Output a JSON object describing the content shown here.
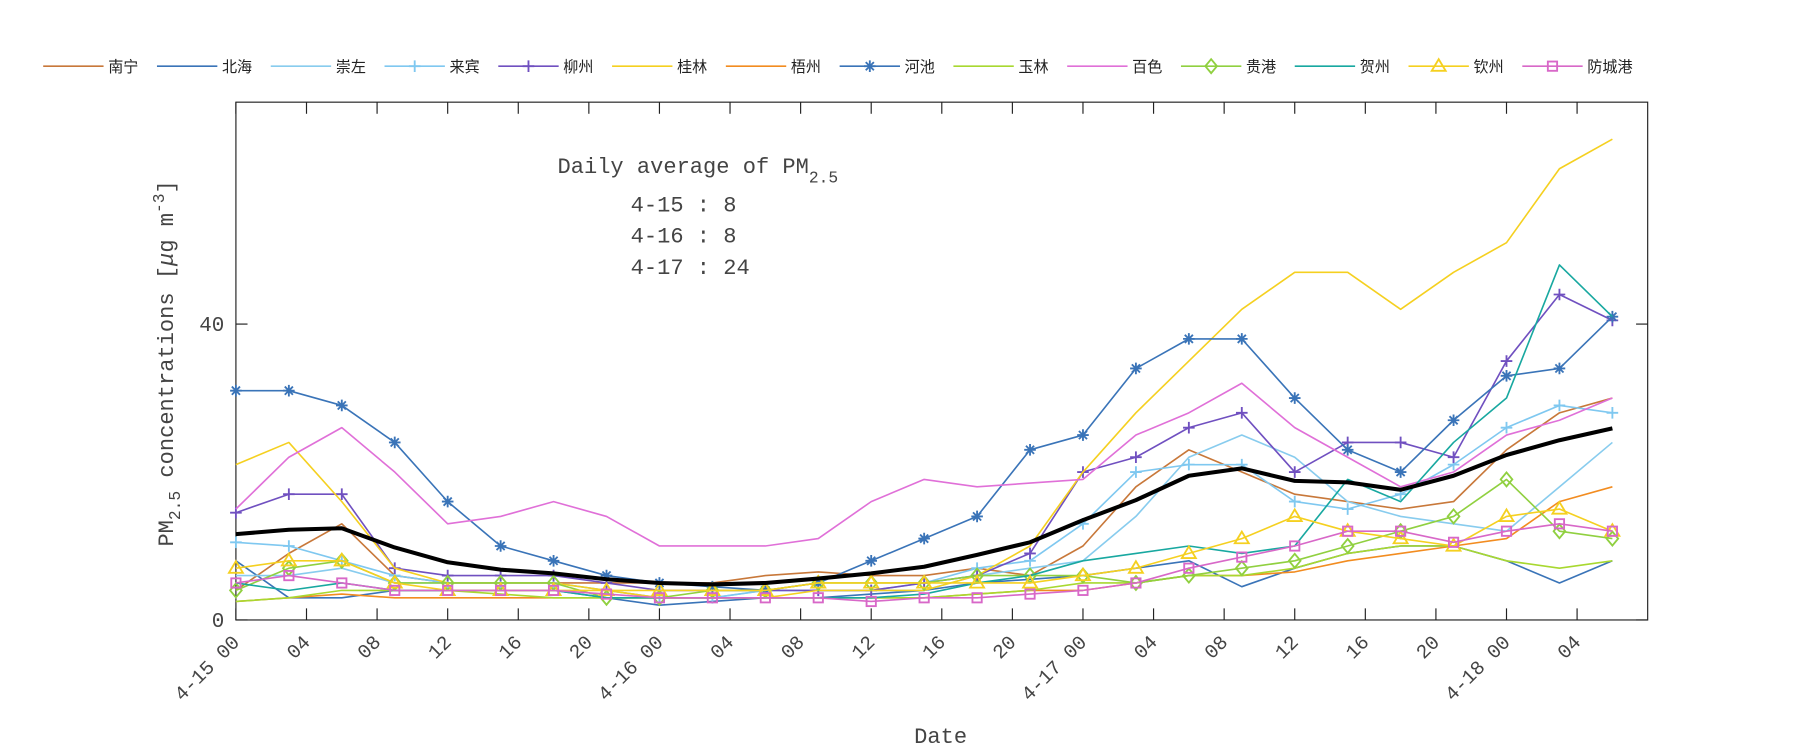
{
  "chart_data": {
    "type": "line",
    "annotation": {
      "title": "Daily average of PM",
      "title_sub": "2.5",
      "lines": [
        "4-15 : 8",
        "4-16 : 8",
        "4-17 : 24"
      ]
    },
    "xlabel": "Date",
    "ylabel": {
      "main": "PM",
      "sub": "2.5",
      "rest": " concentrations [",
      "mu": "μ",
      "unit": "g m",
      "sup": "-3",
      "end": "]"
    },
    "x": [
      0,
      3,
      6,
      9,
      12,
      15,
      18,
      21,
      24,
      27,
      30,
      33,
      36,
      39,
      42,
      45,
      48,
      51,
      54,
      57,
      60,
      63,
      66,
      69,
      72,
      75,
      78
    ],
    "xlim": [
      0,
      80
    ],
    "xticks": [
      {
        "value": 0,
        "label": "4-15 00"
      },
      {
        "value": 4,
        "label": "04"
      },
      {
        "value": 8,
        "label": "08"
      },
      {
        "value": 12,
        "label": "12"
      },
      {
        "value": 16,
        "label": "16"
      },
      {
        "value": 20,
        "label": "20"
      },
      {
        "value": 24,
        "label": "4-16 00"
      },
      {
        "value": 28,
        "label": "04"
      },
      {
        "value": 32,
        "label": "08"
      },
      {
        "value": 36,
        "label": "12"
      },
      {
        "value": 40,
        "label": "16"
      },
      {
        "value": 44,
        "label": "20"
      },
      {
        "value": 48,
        "label": "4-17 00"
      },
      {
        "value": 52,
        "label": "04"
      },
      {
        "value": 56,
        "label": "08"
      },
      {
        "value": 60,
        "label": "12"
      },
      {
        "value": 64,
        "label": "16"
      },
      {
        "value": 68,
        "label": "20"
      },
      {
        "value": 72,
        "label": "4-18 00"
      },
      {
        "value": 76,
        "label": "04"
      }
    ],
    "ylim": [
      0,
      70
    ],
    "yticks": [
      0,
      40
    ],
    "series": [
      {
        "name": "南宁",
        "color": "#c8783a",
        "marker": "none",
        "values": [
          4,
          9,
          13,
          6,
          5,
          5,
          5,
          5,
          5,
          5,
          6,
          6.5,
          6,
          6,
          7,
          6,
          10,
          18,
          23,
          20,
          17,
          16,
          15,
          16,
          23,
          28,
          30
        ]
      },
      {
        "name": "北海",
        "color": "#3a74b8",
        "marker": "none",
        "values": [
          8,
          3,
          3,
          4,
          4,
          4,
          4,
          3,
          2,
          2.5,
          3,
          3,
          3.5,
          4,
          5,
          5.5,
          6,
          7,
          8,
          4.5,
          7,
          9,
          10,
          10,
          8,
          5,
          8
        ]
      },
      {
        "name": "崇左",
        "color": "#88ccee",
        "marker": "none",
        "values": [
          6,
          6,
          7,
          5,
          5,
          5,
          5,
          4,
          3,
          3,
          4,
          4,
          4,
          4,
          6,
          7,
          8,
          14,
          22,
          25,
          22,
          16,
          14,
          13,
          12,
          18,
          24
        ]
      },
      {
        "name": "来宾",
        "color": "#7fc8f0",
        "marker": "plus",
        "values": [
          10.5,
          10,
          8,
          6,
          5,
          5,
          5,
          4,
          3,
          3,
          4,
          4,
          4,
          5,
          7,
          8,
          13,
          20,
          21,
          21,
          16,
          15,
          17,
          21,
          26,
          29,
          28
        ]
      },
      {
        "name": "柳州",
        "color": "#7050c0",
        "marker": "plus",
        "values": [
          14.5,
          17,
          17,
          7,
          6,
          6,
          6,
          5,
          4,
          4,
          4,
          4,
          4,
          5,
          6,
          9,
          20,
          22,
          26,
          28,
          20,
          24,
          24,
          22,
          35,
          44,
          40.5
        ]
      },
      {
        "name": "桂林",
        "color": "#f5d020",
        "marker": "none",
        "values": [
          21,
          24,
          16,
          7,
          5,
          5,
          5,
          4,
          3,
          3,
          3,
          4,
          4,
          4,
          6,
          10,
          20,
          28,
          35,
          42,
          47,
          47,
          42,
          47,
          51,
          61,
          65
        ]
      },
      {
        "name": "梧州",
        "color": "#f28c20",
        "marker": "none",
        "values": [
          2.5,
          3,
          3.5,
          3,
          3,
          3,
          3,
          3,
          3,
          3,
          3,
          3,
          3,
          3,
          3.5,
          4,
          4,
          5,
          6,
          6,
          6.5,
          8,
          9,
          10,
          11,
          16,
          18
        ]
      },
      {
        "name": "河池",
        "color": "#3a74b8",
        "marker": "star",
        "values": [
          31,
          31,
          29,
          24,
          16,
          10,
          8,
          6,
          5,
          4.5,
          4,
          5,
          8,
          11,
          14,
          23,
          25,
          34,
          38,
          38,
          30,
          23,
          20,
          27,
          33,
          34,
          41
        ]
      },
      {
        "name": "玉林",
        "color": "#a8d830",
        "marker": "none",
        "values": [
          2.5,
          3,
          4,
          4,
          4,
          3.5,
          3,
          3,
          3,
          3,
          3,
          3,
          3,
          3,
          3.5,
          4,
          5,
          5,
          6,
          6,
          7,
          9,
          10,
          10,
          8,
          7,
          8
        ]
      },
      {
        "name": "百色",
        "color": "#e070d8",
        "marker": "none",
        "values": [
          15,
          22,
          26,
          20,
          13,
          14,
          16,
          14,
          10,
          10,
          10,
          11,
          16,
          19,
          18,
          18.5,
          19,
          25,
          28,
          32,
          26,
          22,
          18,
          20,
          25,
          27,
          30
        ]
      },
      {
        "name": "贵港",
        "color": "#90d040",
        "marker": "diamond",
        "values": [
          4,
          7,
          8,
          5,
          5,
          5,
          5,
          3,
          3,
          4,
          4,
          5,
          5,
          5,
          6,
          6,
          6,
          5,
          6,
          7,
          8,
          10,
          12,
          14,
          19,
          12,
          11
        ]
      },
      {
        "name": "贺州",
        "color": "#18a8a0",
        "marker": "none",
        "values": [
          5,
          4,
          5,
          4,
          4,
          4,
          4,
          3,
          3,
          3,
          3,
          3,
          3,
          3.5,
          5,
          6,
          8,
          9,
          10,
          9,
          10,
          19,
          16,
          24,
          30,
          48,
          41
        ]
      },
      {
        "name": "钦州",
        "color": "#f5d020",
        "marker": "triangle",
        "values": [
          7,
          8,
          8,
          5,
          4,
          4,
          4,
          4,
          4,
          4,
          4,
          5,
          5,
          5,
          5,
          5,
          6,
          7,
          9,
          11,
          14,
          12,
          11,
          10,
          14,
          15,
          12
        ]
      },
      {
        "name": "防城港",
        "color": "#d868c8",
        "marker": "square",
        "values": [
          5,
          6,
          5,
          4,
          4,
          4,
          4,
          3.5,
          3,
          3,
          3,
          3,
          2.5,
          3,
          3,
          3.5,
          4,
          5,
          7,
          8.5,
          10,
          12,
          12,
          10.5,
          12,
          13,
          12
        ]
      },
      {
        "color": "#000000",
        "marker": "none",
        "linewidth": 3.5,
        "values": [
          11.6,
          12.2,
          12.4,
          9.8,
          7.8,
          6.8,
          6.3,
          5.5,
          5,
          4.8,
          5,
          5.6,
          6.3,
          7.2,
          8.8,
          10.5,
          13.5,
          16.2,
          19.5,
          20.5,
          18.8,
          18.6,
          17.6,
          19.5,
          22.3,
          24.3,
          25.9
        ]
      }
    ]
  }
}
